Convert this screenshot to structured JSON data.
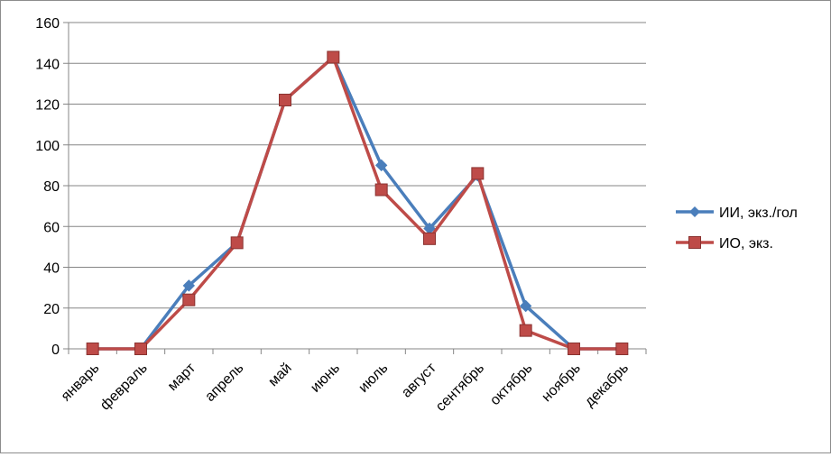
{
  "chart_data": {
    "type": "line",
    "categories": [
      "январь",
      "февраль",
      "март",
      "апрель",
      "май",
      "июнь",
      "июль",
      "август",
      "сентябрь",
      "октябрь",
      "ноябрь",
      "декабрь"
    ],
    "series": [
      {
        "name": "ИИ, экз./гол",
        "color": "#4a7ebb",
        "marker": "diamond",
        "values": [
          0,
          0,
          31,
          52,
          122,
          143,
          90,
          59,
          85,
          21,
          0,
          0
        ]
      },
      {
        "name": "ИО, экз.",
        "color": "#be4b48",
        "marker": "square",
        "values": [
          0,
          0,
          24,
          52,
          122,
          143,
          78,
          54,
          86,
          9,
          0,
          0
        ]
      }
    ],
    "yticks": [
      "0",
      "20",
      "40",
      "60",
      "80",
      "100",
      "120",
      "140",
      "160"
    ],
    "ylim": [
      0,
      160
    ],
    "grid": true,
    "legend": "right",
    "title": "",
    "xlabel": "",
    "ylabel": ""
  }
}
